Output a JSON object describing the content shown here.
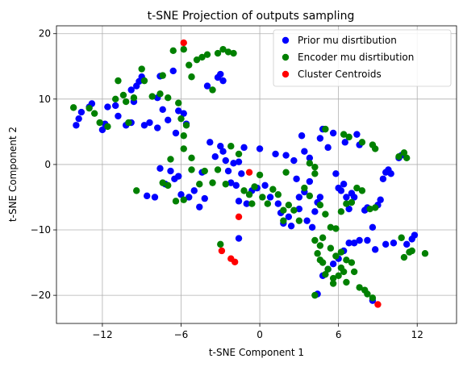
{
  "chart_data": {
    "type": "scatter",
    "title": "t-SNE Projection of outputs sampling",
    "xlabel": "t-SNE Component 1",
    "ylabel": "t-SNE Component 2",
    "xlim": [
      -15.5,
      15.0
    ],
    "ylim": [
      -24.3,
      21.2
    ],
    "xticks": [
      -12,
      -6,
      0,
      6,
      12
    ],
    "yticks": [
      -20,
      -10,
      0,
      10,
      20
    ],
    "xtick_labels": [
      "−12",
      "−6",
      "0",
      "6",
      "12"
    ],
    "ytick_labels": [
      "−20",
      "−10",
      "0",
      "10",
      "20"
    ],
    "grid": true,
    "legend_position": "top-right",
    "series": [
      {
        "name": "Prior mu disrtibution",
        "color": "#0000ff",
        "points": [
          [
            -14.0,
            6.0
          ],
          [
            -13.8,
            7.0
          ],
          [
            -13.6,
            8.0
          ],
          [
            -13.0,
            8.8
          ],
          [
            -12.8,
            9.3
          ],
          [
            -12.0,
            5.3
          ],
          [
            -11.8,
            6.2
          ],
          [
            -11.6,
            8.8
          ],
          [
            -11.0,
            9.0
          ],
          [
            -10.8,
            7.4
          ],
          [
            -10.2,
            6.0
          ],
          [
            -9.8,
            11.4
          ],
          [
            -9.6,
            9.6
          ],
          [
            -9.4,
            12.0
          ],
          [
            -9.2,
            12.7
          ],
          [
            -9.0,
            13.4
          ],
          [
            -8.8,
            6.0
          ],
          [
            -8.4,
            6.4
          ],
          [
            -7.8,
            10.2
          ],
          [
            -7.6,
            13.5
          ],
          [
            -7.4,
            8.4
          ],
          [
            -7.0,
            6.8
          ],
          [
            -6.6,
            14.3
          ],
          [
            -6.4,
            4.8
          ],
          [
            -6.2,
            8.2
          ],
          [
            -5.8,
            7.8
          ],
          [
            -3.2,
            13.3
          ],
          [
            -3.0,
            13.8
          ],
          [
            -2.8,
            12.8
          ],
          [
            -4.0,
            12.0
          ],
          [
            -8.6,
            -4.8
          ],
          [
            -8.0,
            -5.0
          ],
          [
            -7.6,
            -0.6
          ],
          [
            -7.2,
            -3.0
          ],
          [
            -6.8,
            -1.0
          ],
          [
            -6.5,
            -2.2
          ],
          [
            -6.2,
            -1.8
          ],
          [
            -6.0,
            -4.6
          ],
          [
            -5.4,
            -5.0
          ],
          [
            -5.0,
            -4.0
          ],
          [
            -4.6,
            -6.5
          ],
          [
            -4.2,
            -5.2
          ],
          [
            -3.8,
            3.4
          ],
          [
            -3.4,
            1.2
          ],
          [
            -3.0,
            2.8
          ],
          [
            -2.8,
            2.0
          ],
          [
            -2.6,
            0.6
          ],
          [
            -2.4,
            -1.0
          ],
          [
            -2.2,
            -2.8
          ],
          [
            -2.0,
            0.2
          ],
          [
            -1.8,
            -3.2
          ],
          [
            -1.6,
            -5.6
          ],
          [
            -1.4,
            -1.4
          ],
          [
            -1.2,
            2.6
          ],
          [
            -1.0,
            -6.0
          ],
          [
            -0.6,
            -4.0
          ],
          [
            -0.2,
            -3.6
          ],
          [
            0.0,
            2.4
          ],
          [
            0.4,
            -3.2
          ],
          [
            0.8,
            -5.0
          ],
          [
            1.2,
            1.6
          ],
          [
            1.4,
            -6.0
          ],
          [
            1.6,
            -7.4
          ],
          [
            1.8,
            -9.0
          ],
          [
            2.0,
            1.4
          ],
          [
            2.2,
            -8.0
          ],
          [
            2.4,
            -9.4
          ],
          [
            2.6,
            0.6
          ],
          [
            2.8,
            -2.2
          ],
          [
            3.0,
            -6.8
          ],
          [
            3.2,
            4.4
          ],
          [
            3.4,
            -4.2
          ],
          [
            3.6,
            -8.6
          ],
          [
            3.8,
            -2.6
          ],
          [
            4.0,
            -9.6
          ],
          [
            4.2,
            -7.2
          ],
          [
            4.4,
            -5.8
          ],
          [
            4.6,
            -5.0
          ],
          [
            3.4,
            2.0
          ],
          [
            3.8,
            1.0
          ],
          [
            4.6,
            4.0
          ],
          [
            4.8,
            5.4
          ],
          [
            5.2,
            2.6
          ],
          [
            5.6,
            4.8
          ],
          [
            5.8,
            -1.4
          ],
          [
            6.0,
            -3.6
          ],
          [
            6.2,
            -4.0
          ],
          [
            6.4,
            -3.0
          ],
          [
            6.6,
            -5.0
          ],
          [
            6.8,
            -6.8
          ],
          [
            7.0,
            -4.4
          ],
          [
            7.2,
            -5.0
          ],
          [
            7.4,
            4.6
          ],
          [
            7.6,
            3.0
          ],
          [
            8.0,
            -7.0
          ],
          [
            8.2,
            -6.6
          ],
          [
            8.6,
            -9.6
          ],
          [
            9.0,
            -6.2
          ],
          [
            9.2,
            -5.4
          ],
          [
            9.4,
            -2.2
          ],
          [
            9.6,
            -1.2
          ],
          [
            9.8,
            -0.8
          ],
          [
            10.0,
            -1.4
          ],
          [
            10.6,
            1.0
          ],
          [
            10.8,
            1.4
          ],
          [
            11.2,
            -12.2
          ],
          [
            11.6,
            -11.4
          ],
          [
            11.8,
            -10.8
          ],
          [
            10.2,
            -12.0
          ],
          [
            9.6,
            -12.2
          ],
          [
            8.8,
            -13.0
          ],
          [
            8.2,
            -11.6
          ],
          [
            7.6,
            -11.6
          ],
          [
            7.2,
            -12.0
          ],
          [
            6.8,
            -12.0
          ],
          [
            6.4,
            -13.2
          ],
          [
            6.0,
            -14.4
          ],
          [
            5.6,
            -15.2
          ],
          [
            5.2,
            -16.0
          ],
          [
            4.8,
            -17.0
          ],
          [
            4.4,
            -19.8
          ],
          [
            8.6,
            -20.8
          ],
          [
            3.0,
            -5.0
          ],
          [
            6.5,
            3.4
          ],
          [
            -1.6,
            0.4
          ],
          [
            -4.4,
            -1.2
          ],
          [
            -1.6,
            -11.3
          ],
          [
            -9.8,
            6.4
          ],
          [
            -7.8,
            5.6
          ],
          [
            -5.6,
            6.2
          ]
        ]
      },
      {
        "name": "Encoder mu disrtibution",
        "color": "#008000",
        "points": [
          [
            -14.2,
            8.7
          ],
          [
            -13.0,
            8.6
          ],
          [
            -12.6,
            7.8
          ],
          [
            -12.2,
            6.4
          ],
          [
            -11.6,
            5.8
          ],
          [
            -11.0,
            10.0
          ],
          [
            -10.8,
            12.8
          ],
          [
            -10.4,
            10.6
          ],
          [
            -10.2,
            9.6
          ],
          [
            -10.0,
            6.4
          ],
          [
            -9.6,
            10.2
          ],
          [
            -9.0,
            14.6
          ],
          [
            -8.8,
            12.8
          ],
          [
            -8.2,
            10.4
          ],
          [
            -7.6,
            10.8
          ],
          [
            -7.4,
            13.6
          ],
          [
            -7.0,
            10.2
          ],
          [
            -6.6,
            17.4
          ],
          [
            -6.2,
            9.4
          ],
          [
            -6.0,
            7.0
          ],
          [
            -5.8,
            17.6
          ],
          [
            -5.6,
            6.0
          ],
          [
            -5.4,
            15.2
          ],
          [
            -5.2,
            13.4
          ],
          [
            -4.8,
            16.0
          ],
          [
            -4.4,
            16.4
          ],
          [
            -4.0,
            16.8
          ],
          [
            -3.6,
            11.4
          ],
          [
            -3.2,
            17.0
          ],
          [
            -2.8,
            17.6
          ],
          [
            -2.4,
            17.2
          ],
          [
            -2.0,
            17.0
          ],
          [
            -5.8,
            2.4
          ],
          [
            -5.8,
            4.4
          ],
          [
            -5.2,
            1.0
          ],
          [
            -6.8,
            0.8
          ],
          [
            -7.4,
            -2.8
          ],
          [
            -7.0,
            -3.2
          ],
          [
            -6.4,
            -5.6
          ],
          [
            -5.8,
            -5.4
          ],
          [
            -5.2,
            -0.8
          ],
          [
            -4.6,
            -3.0
          ],
          [
            -4.2,
            -1.0
          ],
          [
            -3.6,
            -2.8
          ],
          [
            -3.2,
            -0.8
          ],
          [
            -2.6,
            -3.0
          ],
          [
            -2.2,
            2.8
          ],
          [
            -1.6,
            1.6
          ],
          [
            -1.2,
            -4.0
          ],
          [
            -0.8,
            -4.6
          ],
          [
            -0.4,
            -3.4
          ],
          [
            0.2,
            -5.0
          ],
          [
            0.6,
            -6.0
          ],
          [
            1.0,
            -3.8
          ],
          [
            1.4,
            -4.6
          ],
          [
            1.8,
            -8.6
          ],
          [
            2.2,
            -6.2
          ],
          [
            2.6,
            -7.0
          ],
          [
            3.0,
            -8.6
          ],
          [
            3.4,
            -3.6
          ],
          [
            3.8,
            -4.8
          ],
          [
            4.2,
            -1.4
          ],
          [
            4.6,
            -6.2
          ],
          [
            5.0,
            -7.6
          ],
          [
            5.4,
            -9.6
          ],
          [
            5.8,
            -9.8
          ],
          [
            6.2,
            -7.2
          ],
          [
            6.6,
            -6.0
          ],
          [
            7.0,
            -5.8
          ],
          [
            7.4,
            -3.6
          ],
          [
            7.8,
            -4.0
          ],
          [
            8.4,
            -6.8
          ],
          [
            8.8,
            -6.6
          ],
          [
            3.8,
            0.2
          ],
          [
            4.2,
            -0.4
          ],
          [
            5.0,
            5.4
          ],
          [
            6.4,
            4.6
          ],
          [
            6.8,
            4.2
          ],
          [
            7.8,
            3.4
          ],
          [
            8.6,
            3.0
          ],
          [
            8.8,
            2.4
          ],
          [
            10.6,
            1.2
          ],
          [
            11.0,
            1.8
          ],
          [
            11.2,
            1.0
          ],
          [
            10.8,
            -11.2
          ],
          [
            11.6,
            -13.2
          ],
          [
            12.6,
            -13.6
          ],
          [
            11.4,
            -13.4
          ],
          [
            11.0,
            -14.2
          ],
          [
            7.0,
            -15.0
          ],
          [
            6.6,
            -14.6
          ],
          [
            6.4,
            -16.4
          ],
          [
            6.0,
            -17.0
          ],
          [
            5.6,
            -18.2
          ],
          [
            5.2,
            -16.0
          ],
          [
            5.0,
            -16.8
          ],
          [
            4.8,
            -15.0
          ],
          [
            4.6,
            -14.6
          ],
          [
            4.4,
            -13.6
          ],
          [
            4.2,
            -11.6
          ],
          [
            4.6,
            -12.4
          ],
          [
            4.8,
            -11.2
          ],
          [
            5.4,
            -12.8
          ],
          [
            5.8,
            -14.0
          ],
          [
            6.2,
            -13.4
          ],
          [
            7.2,
            -16.4
          ],
          [
            7.6,
            -18.8
          ],
          [
            8.0,
            -19.2
          ],
          [
            8.2,
            -19.8
          ],
          [
            8.6,
            -20.4
          ],
          [
            4.2,
            -20.0
          ],
          [
            6.6,
            -18.0
          ],
          [
            6.2,
            -15.8
          ],
          [
            5.6,
            -17.4
          ],
          [
            -3.0,
            -12.2
          ],
          [
            0.0,
            -1.6
          ],
          [
            1.8,
            -7.0
          ],
          [
            -0.6,
            -6.0
          ],
          [
            -9.4,
            -4.0
          ],
          [
            2.0,
            -1.2
          ]
        ]
      },
      {
        "name": "Cluster Centroids",
        "color": "#ff0000",
        "points": [
          [
            -5.8,
            18.6
          ],
          [
            -0.8,
            -1.2
          ],
          [
            -1.6,
            -8.0
          ],
          [
            -2.9,
            -13.2
          ],
          [
            -2.2,
            -14.4
          ],
          [
            -1.9,
            -14.9
          ],
          [
            9.0,
            -21.4
          ]
        ]
      }
    ]
  }
}
